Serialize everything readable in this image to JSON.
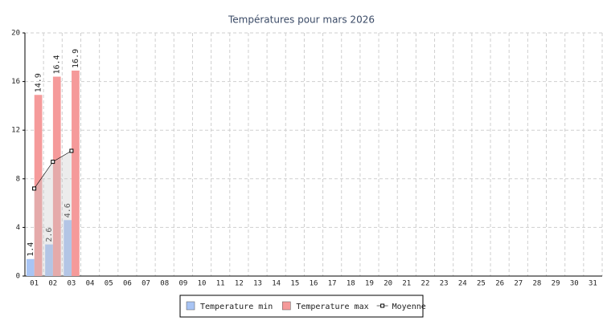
{
  "chart_data": {
    "type": "bar",
    "title": "Températures pour mars 2026",
    "categories": [
      "01",
      "02",
      "03",
      "04",
      "05",
      "06",
      "07",
      "08",
      "09",
      "10",
      "11",
      "12",
      "13",
      "14",
      "15",
      "16",
      "17",
      "18",
      "19",
      "20",
      "21",
      "22",
      "23",
      "24",
      "25",
      "26",
      "27",
      "28",
      "29",
      "30",
      "31"
    ],
    "series": [
      {
        "name": "Temperature min",
        "color": "#a8c4f4",
        "type": "bar",
        "values": [
          1.4,
          2.6,
          4.6,
          null,
          null,
          null,
          null,
          null,
          null,
          null,
          null,
          null,
          null,
          null,
          null,
          null,
          null,
          null,
          null,
          null,
          null,
          null,
          null,
          null,
          null,
          null,
          null,
          null,
          null,
          null,
          null
        ]
      },
      {
        "name": "Temperature max",
        "color": "#f59a9a",
        "type": "bar",
        "values": [
          14.9,
          16.4,
          16.9,
          null,
          null,
          null,
          null,
          null,
          null,
          null,
          null,
          null,
          null,
          null,
          null,
          null,
          null,
          null,
          null,
          null,
          null,
          null,
          null,
          null,
          null,
          null,
          null,
          null,
          null,
          null,
          null
        ]
      },
      {
        "name": "Moyenne",
        "color": "#000000",
        "type": "line",
        "values": [
          7.2,
          9.4,
          10.3,
          null,
          null,
          null,
          null,
          null,
          null,
          null,
          null,
          null,
          null,
          null,
          null,
          null,
          null,
          null,
          null,
          null,
          null,
          null,
          null,
          null,
          null,
          null,
          null,
          null,
          null,
          null,
          null
        ]
      }
    ],
    "ylim": [
      0,
      20
    ],
    "yticks": [
      0,
      4,
      8,
      12,
      16,
      20
    ],
    "grid": true,
    "legend": "bottom"
  }
}
